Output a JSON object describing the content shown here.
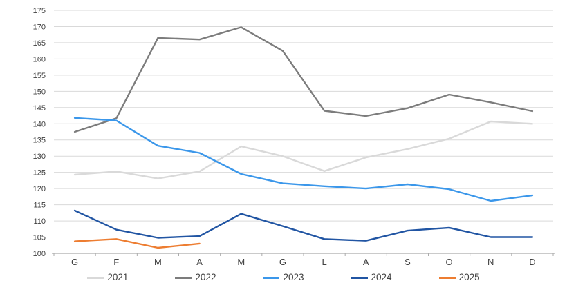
{
  "chart_data": {
    "type": "line",
    "title": "",
    "xlabel": "",
    "ylabel": "",
    "categories": [
      "G",
      "F",
      "M",
      "A",
      "M",
      "G",
      "L",
      "A",
      "S",
      "O",
      "N",
      "D"
    ],
    "series": [
      {
        "name": "2021",
        "color": "#D9D9D9",
        "values": [
          124.3,
          125.3,
          123.1,
          125.3,
          133.0,
          130.0,
          125.4,
          129.6,
          132.2,
          135.4,
          140.7,
          140.0
        ]
      },
      {
        "name": "2022",
        "color": "#7C7C7C",
        "values": [
          137.5,
          141.7,
          166.5,
          166.0,
          169.8,
          162.5,
          144.0,
          142.4,
          144.8,
          149.0,
          146.6,
          143.9
        ]
      },
      {
        "name": "2023",
        "color": "#3B97EA",
        "values": [
          141.8,
          141.0,
          133.2,
          131.0,
          124.5,
          121.6,
          120.7,
          120.0,
          121.3,
          119.8,
          116.2,
          117.9
        ]
      },
      {
        "name": "2024",
        "color": "#2155A3",
        "values": [
          113.2,
          107.3,
          104.8,
          105.3,
          112.2,
          108.4,
          104.4,
          103.9,
          107.0,
          107.9,
          105.0,
          105.0
        ]
      },
      {
        "name": "2025",
        "color": "#ED7D31",
        "values": [
          103.7,
          104.4,
          101.7,
          103.0
        ]
      }
    ],
    "ylim": [
      100,
      175
    ],
    "ytick_step": 5,
    "yticks": [
      100,
      105,
      110,
      115,
      120,
      125,
      130,
      135,
      140,
      145,
      150,
      155,
      160,
      165,
      170,
      175
    ],
    "grid": true,
    "legend_position": "bottom",
    "legend_entries": [
      "2021",
      "2022",
      "2023",
      "2024",
      "2025"
    ]
  },
  "style_colors": {
    "gridline": "#D9D9D9",
    "axis_line": "#ABABAB",
    "tick_mark": "#ABABAB",
    "label_text": "#404040",
    "background": "#FFFFFF"
  }
}
